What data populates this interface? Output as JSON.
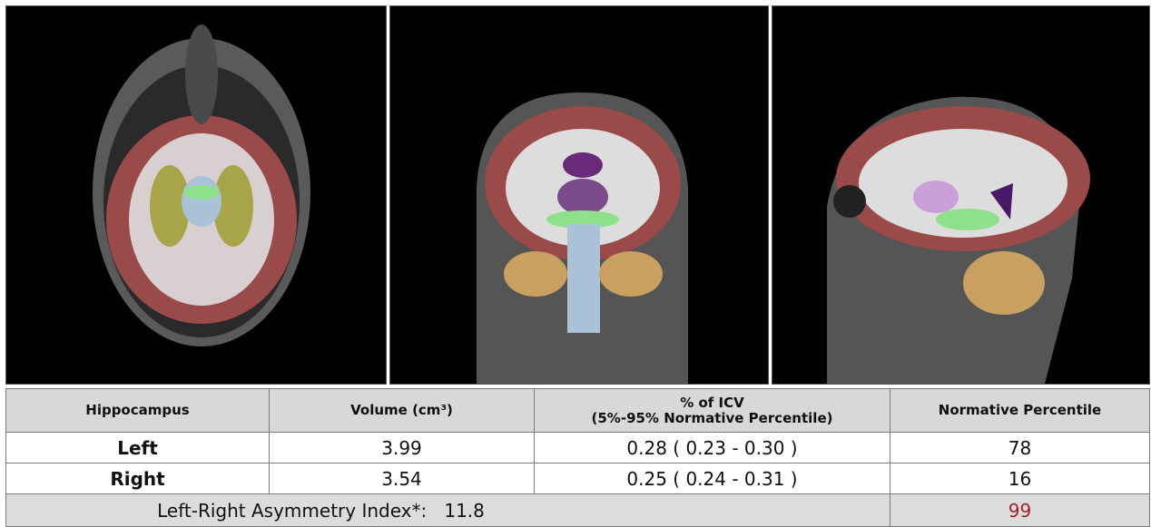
{
  "table": {
    "header": [
      "Hippocampus",
      "Volume (cm³)",
      [
        "% of ICV",
        "(5%-95% Normative Percentile)"
      ],
      "Normative Percentile"
    ],
    "rows": [
      [
        "Left",
        "3.99",
        "0.28 ( 0.23 - 0.30 )",
        "78"
      ],
      [
        "Right",
        "3.54",
        "0.25 ( 0.24 - 0.31 )",
        "16"
      ]
    ],
    "footer": {
      "label": "Left-Right Asymmetry Index*:",
      "value": "11.8",
      "percentile": "99"
    }
  }
}
